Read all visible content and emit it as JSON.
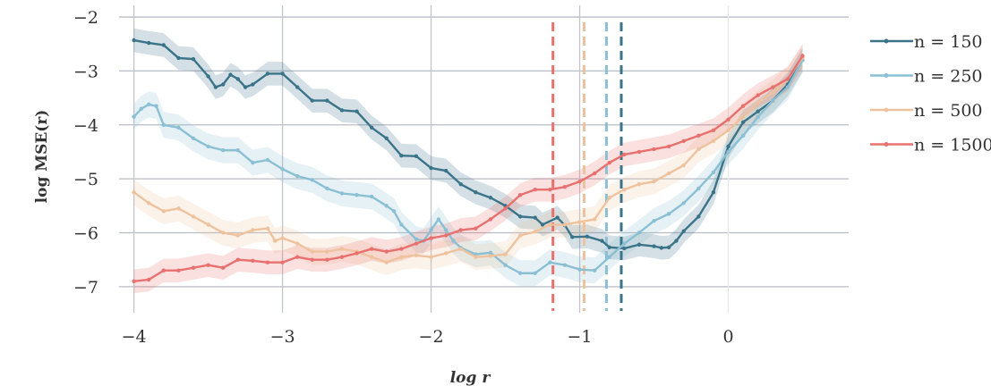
{
  "chart_data": {
    "type": "line",
    "title": "",
    "xlabel": "log r",
    "ylabel": "log MSE(r)",
    "xlim": [
      -4.1,
      0.75
    ],
    "ylim": [
      -7.45,
      -1.85
    ],
    "x_ticks": [
      {
        "value": -4,
        "label": "−4"
      },
      {
        "value": -3,
        "label": "−3"
      },
      {
        "value": -2,
        "label": "−2"
      },
      {
        "value": -1,
        "label": "−1"
      },
      {
        "value": 0,
        "label": "0"
      }
    ],
    "y_ticks": [
      {
        "value": -2,
        "label": "−2"
      },
      {
        "value": -3,
        "label": "−3"
      },
      {
        "value": -4,
        "label": "−4"
      },
      {
        "value": -5,
        "label": "−5"
      },
      {
        "value": -6,
        "label": "−6"
      },
      {
        "value": -7,
        "label": "−7"
      }
    ],
    "grid": true,
    "legend_position": "right",
    "series": [
      {
        "name": "n = 150",
        "color": "#3b7489",
        "band": 0.22,
        "vline": -0.72,
        "points": [
          [
            -4,
            -2.43
          ],
          [
            -3.9,
            -2.48
          ],
          [
            -3.8,
            -2.52
          ],
          [
            -3.7,
            -2.76
          ],
          [
            -3.6,
            -2.78
          ],
          [
            -3.5,
            -3.1
          ],
          [
            -3.45,
            -3.3
          ],
          [
            -3.4,
            -3.25
          ],
          [
            -3.35,
            -3.07
          ],
          [
            -3.3,
            -3.15
          ],
          [
            -3.25,
            -3.3
          ],
          [
            -3.2,
            -3.25
          ],
          [
            -3.1,
            -3.05
          ],
          [
            -3.0,
            -3.05
          ],
          [
            -2.9,
            -3.3
          ],
          [
            -2.8,
            -3.55
          ],
          [
            -2.7,
            -3.55
          ],
          [
            -2.6,
            -3.73
          ],
          [
            -2.5,
            -3.75
          ],
          [
            -2.4,
            -4.05
          ],
          [
            -2.3,
            -4.25
          ],
          [
            -2.2,
            -4.57
          ],
          [
            -2.1,
            -4.58
          ],
          [
            -2.0,
            -4.8
          ],
          [
            -1.9,
            -4.85
          ],
          [
            -1.8,
            -5.1
          ],
          [
            -1.7,
            -5.25
          ],
          [
            -1.6,
            -5.35
          ],
          [
            -1.5,
            -5.5
          ],
          [
            -1.4,
            -5.7
          ],
          [
            -1.3,
            -5.72
          ],
          [
            -1.25,
            -5.85
          ],
          [
            -1.15,
            -5.72
          ],
          [
            -1.1,
            -5.86
          ],
          [
            -1.05,
            -6.08
          ],
          [
            -0.95,
            -6.07
          ],
          [
            -0.85,
            -6.15
          ],
          [
            -0.8,
            -6.27
          ],
          [
            -0.7,
            -6.29
          ],
          [
            -0.6,
            -6.22
          ],
          [
            -0.5,
            -6.25
          ],
          [
            -0.45,
            -6.28
          ],
          [
            -0.4,
            -6.27
          ],
          [
            -0.35,
            -6.15
          ],
          [
            -0.3,
            -5.97
          ],
          [
            -0.2,
            -5.7
          ],
          [
            -0.1,
            -5.25
          ],
          [
            0.0,
            -4.4
          ],
          [
            0.1,
            -3.95
          ],
          [
            0.2,
            -3.75
          ],
          [
            0.3,
            -3.55
          ],
          [
            0.4,
            -3.25
          ],
          [
            0.5,
            -2.8
          ]
        ]
      },
      {
        "name": "n = 250",
        "color": "#8bbfd3",
        "band": 0.24,
        "vline": -0.82,
        "points": [
          [
            -4,
            -3.85
          ],
          [
            -3.95,
            -3.7
          ],
          [
            -3.9,
            -3.62
          ],
          [
            -3.85,
            -3.65
          ],
          [
            -3.8,
            -4.0
          ],
          [
            -3.7,
            -4.05
          ],
          [
            -3.6,
            -4.25
          ],
          [
            -3.5,
            -4.4
          ],
          [
            -3.4,
            -4.47
          ],
          [
            -3.3,
            -4.47
          ],
          [
            -3.2,
            -4.7
          ],
          [
            -3.1,
            -4.65
          ],
          [
            -3.0,
            -4.82
          ],
          [
            -2.9,
            -4.95
          ],
          [
            -2.8,
            -5.02
          ],
          [
            -2.7,
            -5.18
          ],
          [
            -2.6,
            -5.27
          ],
          [
            -2.5,
            -5.3
          ],
          [
            -2.4,
            -5.33
          ],
          [
            -2.3,
            -5.5
          ],
          [
            -2.25,
            -5.6
          ],
          [
            -2.2,
            -5.85
          ],
          [
            -2.1,
            -6.12
          ],
          [
            -2.05,
            -6.15
          ],
          [
            -2.0,
            -5.95
          ],
          [
            -1.95,
            -5.75
          ],
          [
            -1.9,
            -5.95
          ],
          [
            -1.85,
            -6.15
          ],
          [
            -1.8,
            -6.28
          ],
          [
            -1.7,
            -6.4
          ],
          [
            -1.6,
            -6.37
          ],
          [
            -1.5,
            -6.6
          ],
          [
            -1.4,
            -6.75
          ],
          [
            -1.3,
            -6.75
          ],
          [
            -1.2,
            -6.55
          ],
          [
            -1.1,
            -6.6
          ],
          [
            -1.0,
            -6.68
          ],
          [
            -0.9,
            -6.7
          ],
          [
            -0.8,
            -6.45
          ],
          [
            -0.7,
            -6.2
          ],
          [
            -0.6,
            -6.0
          ],
          [
            -0.5,
            -5.78
          ],
          [
            -0.4,
            -5.65
          ],
          [
            -0.3,
            -5.45
          ],
          [
            -0.2,
            -5.18
          ],
          [
            -0.1,
            -4.88
          ],
          [
            0.0,
            -4.5
          ],
          [
            0.1,
            -4.2
          ],
          [
            0.2,
            -3.85
          ],
          [
            0.3,
            -3.55
          ],
          [
            0.4,
            -3.3
          ],
          [
            0.5,
            -2.8
          ]
        ]
      },
      {
        "name": "n = 500",
        "color": "#efc29e",
        "band": 0.24,
        "vline": -0.97,
        "points": [
          [
            -4,
            -5.25
          ],
          [
            -3.9,
            -5.45
          ],
          [
            -3.8,
            -5.6
          ],
          [
            -3.7,
            -5.55
          ],
          [
            -3.6,
            -5.7
          ],
          [
            -3.5,
            -5.85
          ],
          [
            -3.4,
            -6.0
          ],
          [
            -3.3,
            -6.05
          ],
          [
            -3.2,
            -5.95
          ],
          [
            -3.1,
            -5.92
          ],
          [
            -3.05,
            -6.15
          ],
          [
            -3.0,
            -6.1
          ],
          [
            -2.9,
            -6.2
          ],
          [
            -2.8,
            -6.35
          ],
          [
            -2.7,
            -6.35
          ],
          [
            -2.6,
            -6.3
          ],
          [
            -2.5,
            -6.35
          ],
          [
            -2.4,
            -6.45
          ],
          [
            -2.3,
            -6.55
          ],
          [
            -2.2,
            -6.45
          ],
          [
            -2.1,
            -6.42
          ],
          [
            -2.0,
            -6.45
          ],
          [
            -1.9,
            -6.38
          ],
          [
            -1.8,
            -6.3
          ],
          [
            -1.7,
            -6.45
          ],
          [
            -1.6,
            -6.43
          ],
          [
            -1.5,
            -6.4
          ],
          [
            -1.4,
            -6.05
          ],
          [
            -1.3,
            -5.98
          ],
          [
            -1.2,
            -5.85
          ],
          [
            -1.1,
            -5.85
          ],
          [
            -1.0,
            -5.8
          ],
          [
            -0.9,
            -5.75
          ],
          [
            -0.8,
            -5.35
          ],
          [
            -0.7,
            -5.2
          ],
          [
            -0.6,
            -5.1
          ],
          [
            -0.5,
            -5.05
          ],
          [
            -0.4,
            -4.9
          ],
          [
            -0.3,
            -4.75
          ],
          [
            -0.2,
            -4.45
          ],
          [
            -0.1,
            -4.3
          ],
          [
            0.0,
            -4.1
          ],
          [
            0.1,
            -3.85
          ],
          [
            0.2,
            -3.6
          ],
          [
            0.3,
            -3.4
          ],
          [
            0.4,
            -3.15
          ],
          [
            0.5,
            -2.75
          ]
        ]
      },
      {
        "name": "n = 1500",
        "color": "#e8706e",
        "band": 0.22,
        "vline": -1.18,
        "points": [
          [
            -4,
            -6.9
          ],
          [
            -3.9,
            -6.87
          ],
          [
            -3.8,
            -6.7
          ],
          [
            -3.7,
            -6.7
          ],
          [
            -3.6,
            -6.65
          ],
          [
            -3.5,
            -6.6
          ],
          [
            -3.4,
            -6.65
          ],
          [
            -3.3,
            -6.5
          ],
          [
            -3.2,
            -6.52
          ],
          [
            -3.1,
            -6.55
          ],
          [
            -3.0,
            -6.55
          ],
          [
            -2.9,
            -6.45
          ],
          [
            -2.8,
            -6.5
          ],
          [
            -2.7,
            -6.5
          ],
          [
            -2.6,
            -6.45
          ],
          [
            -2.5,
            -6.38
          ],
          [
            -2.4,
            -6.3
          ],
          [
            -2.3,
            -6.35
          ],
          [
            -2.2,
            -6.3
          ],
          [
            -2.1,
            -6.2
          ],
          [
            -2.0,
            -6.1
          ],
          [
            -1.9,
            -6.05
          ],
          [
            -1.8,
            -5.95
          ],
          [
            -1.7,
            -5.92
          ],
          [
            -1.6,
            -5.75
          ],
          [
            -1.5,
            -5.55
          ],
          [
            -1.4,
            -5.3
          ],
          [
            -1.3,
            -5.2
          ],
          [
            -1.2,
            -5.2
          ],
          [
            -1.1,
            -5.15
          ],
          [
            -1.0,
            -5.05
          ],
          [
            -0.9,
            -4.9
          ],
          [
            -0.8,
            -4.7
          ],
          [
            -0.7,
            -4.55
          ],
          [
            -0.6,
            -4.5
          ],
          [
            -0.5,
            -4.45
          ],
          [
            -0.4,
            -4.4
          ],
          [
            -0.3,
            -4.3
          ],
          [
            -0.2,
            -4.2
          ],
          [
            -0.1,
            -4.1
          ],
          [
            0.0,
            -3.9
          ],
          [
            0.1,
            -3.65
          ],
          [
            0.2,
            -3.45
          ],
          [
            0.3,
            -3.3
          ],
          [
            0.4,
            -3.15
          ],
          [
            0.5,
            -2.72
          ]
        ]
      }
    ]
  }
}
